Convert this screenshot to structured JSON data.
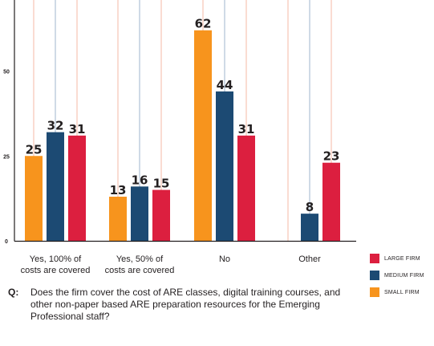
{
  "colors": {
    "small": "#f7941d",
    "medium": "#1c4a73",
    "large": "#dc1f3f",
    "gridline": "#f4b9a4",
    "axis": "#231f20"
  },
  "chart_data": {
    "type": "bar",
    "categories": [
      [
        "Yes, 100% of",
        "costs are covered"
      ],
      [
        "Yes, 50% of",
        "costs are covered"
      ],
      [
        "No"
      ],
      [
        "Other"
      ]
    ],
    "series": [
      {
        "name": "SMALL FIRM",
        "values": [
          25,
          13,
          62,
          0
        ]
      },
      {
        "name": "MEDIUM FIRM",
        "values": [
          32,
          16,
          44,
          8
        ]
      },
      {
        "name": "LARGE FIRM",
        "values": [
          31,
          15,
          31,
          23
        ]
      }
    ],
    "yticks": [
      "0",
      "25",
      "50"
    ],
    "ylim": [
      0,
      70
    ],
    "grid": true,
    "legend_position": "bottom-right"
  },
  "legend": [
    {
      "label": "LARGE FIRM",
      "color": "#dc1f3f"
    },
    {
      "label": "MEDIUM FIRM",
      "color": "#1c4a73"
    },
    {
      "label": "SMALL FIRM",
      "color": "#f7941d"
    }
  ],
  "question": {
    "prefix": "Q:",
    "text": "Does the firm cover the cost of ARE classes, digital training courses, and other non-paper based ARE preparation resources for the Emerging Professional staff?"
  }
}
